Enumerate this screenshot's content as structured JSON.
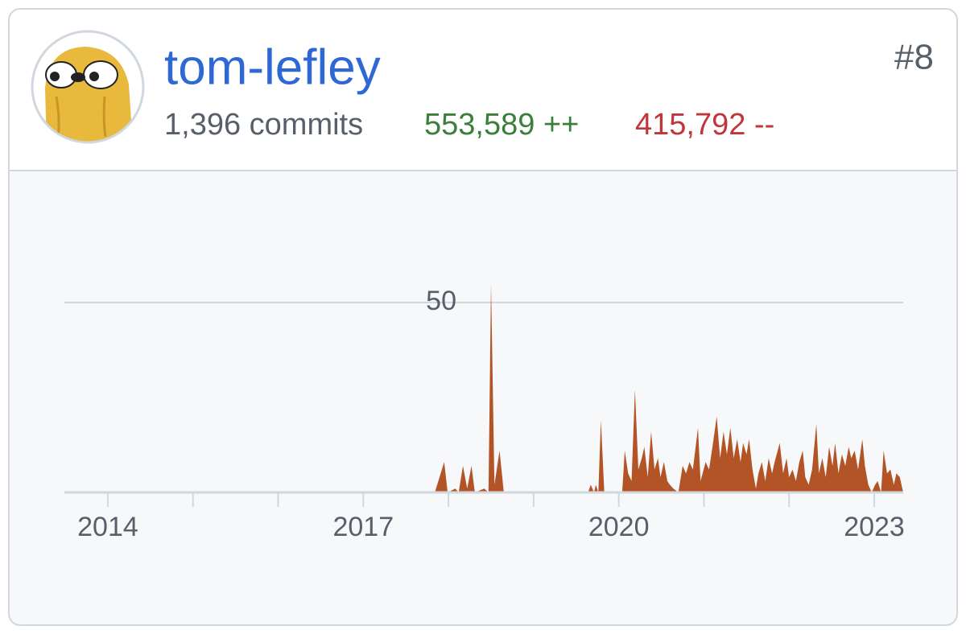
{
  "user": {
    "name": "tom-lefley",
    "rank": "#8",
    "commits": "1,396 commits",
    "additions": "553,589 ++",
    "deletions": "415,792 --"
  },
  "chart_data": {
    "type": "area",
    "color": "#b35426",
    "x": [
      2013.49,
      2017.84,
      2017.95,
      2017.99,
      2018.08,
      2018.12,
      2018.17,
      2018.22,
      2018.27,
      2018.31,
      2018.42,
      2018.47,
      2018.5,
      2018.54,
      2018.6,
      2018.65,
      2019.64,
      2019.67,
      2019.71,
      2019.73,
      2019.76,
      2019.79,
      2019.83,
      2020.04,
      2020.07,
      2020.11,
      2020.15,
      2020.19,
      2020.23,
      2020.27,
      2020.3,
      2020.34,
      2020.38,
      2020.42,
      2020.46,
      2020.49,
      2020.53,
      2020.57,
      2020.6,
      2020.64,
      2020.7,
      2020.75,
      2020.79,
      2020.83,
      2020.87,
      2020.93,
      2020.96,
      2021.02,
      2021.06,
      2021.1,
      2021.15,
      2021.19,
      2021.23,
      2021.27,
      2021.31,
      2021.35,
      2021.39,
      2021.43,
      2021.46,
      2021.5,
      2021.53,
      2021.57,
      2021.61,
      2021.64,
      2021.68,
      2021.72,
      2021.76,
      2021.8,
      2021.83,
      2021.89,
      2021.93,
      2021.97,
      2022.0,
      2022.04,
      2022.08,
      2022.12,
      2022.16,
      2022.19,
      2022.23,
      2022.27,
      2022.32,
      2022.35,
      2022.39,
      2022.43,
      2022.47,
      2022.51,
      2022.54,
      2022.58,
      2022.62,
      2022.66,
      2022.7,
      2022.73,
      2022.77,
      2022.81,
      2022.86,
      2022.89,
      2022.93,
      2022.97,
      2023.01,
      2023.04,
      2023.08,
      2023.11,
      2023.15,
      2023.19,
      2023.23,
      2023.26,
      2023.3,
      2023.34
    ],
    "values": [
      0,
      0,
      8,
      0,
      1,
      0,
      7,
      1,
      7,
      0,
      1,
      0,
      55,
      2,
      11,
      0,
      0,
      2,
      0,
      2,
      0,
      19,
      0,
      0,
      11,
      5,
      3,
      27,
      6,
      9,
      12,
      4,
      16,
      6,
      9,
      4,
      8,
      3,
      2,
      1,
      0,
      7,
      5,
      8,
      6,
      17,
      3,
      8,
      6,
      12,
      20,
      9,
      16,
      10,
      17,
      9,
      14,
      8,
      13,
      10,
      14,
      6,
      1,
      5,
      8,
      3,
      9,
      5,
      8,
      13,
      5,
      9,
      4,
      6,
      3,
      8,
      11,
      4,
      2,
      6,
      18,
      5,
      9,
      4,
      12,
      7,
      13,
      5,
      10,
      7,
      12,
      9,
      11,
      6,
      14,
      7,
      2,
      0,
      2,
      3,
      0,
      11,
      5,
      6,
      2,
      5,
      4,
      0
    ],
    "xlim": [
      2013.49,
      2023.34
    ],
    "ylim": [
      0,
      55
    ],
    "xticks": [
      2014,
      2017,
      2020,
      2023
    ],
    "xminor_ticks": [
      2015,
      2016,
      2018,
      2019,
      2021,
      2022
    ],
    "yticks": [
      50
    ],
    "grid": true
  }
}
